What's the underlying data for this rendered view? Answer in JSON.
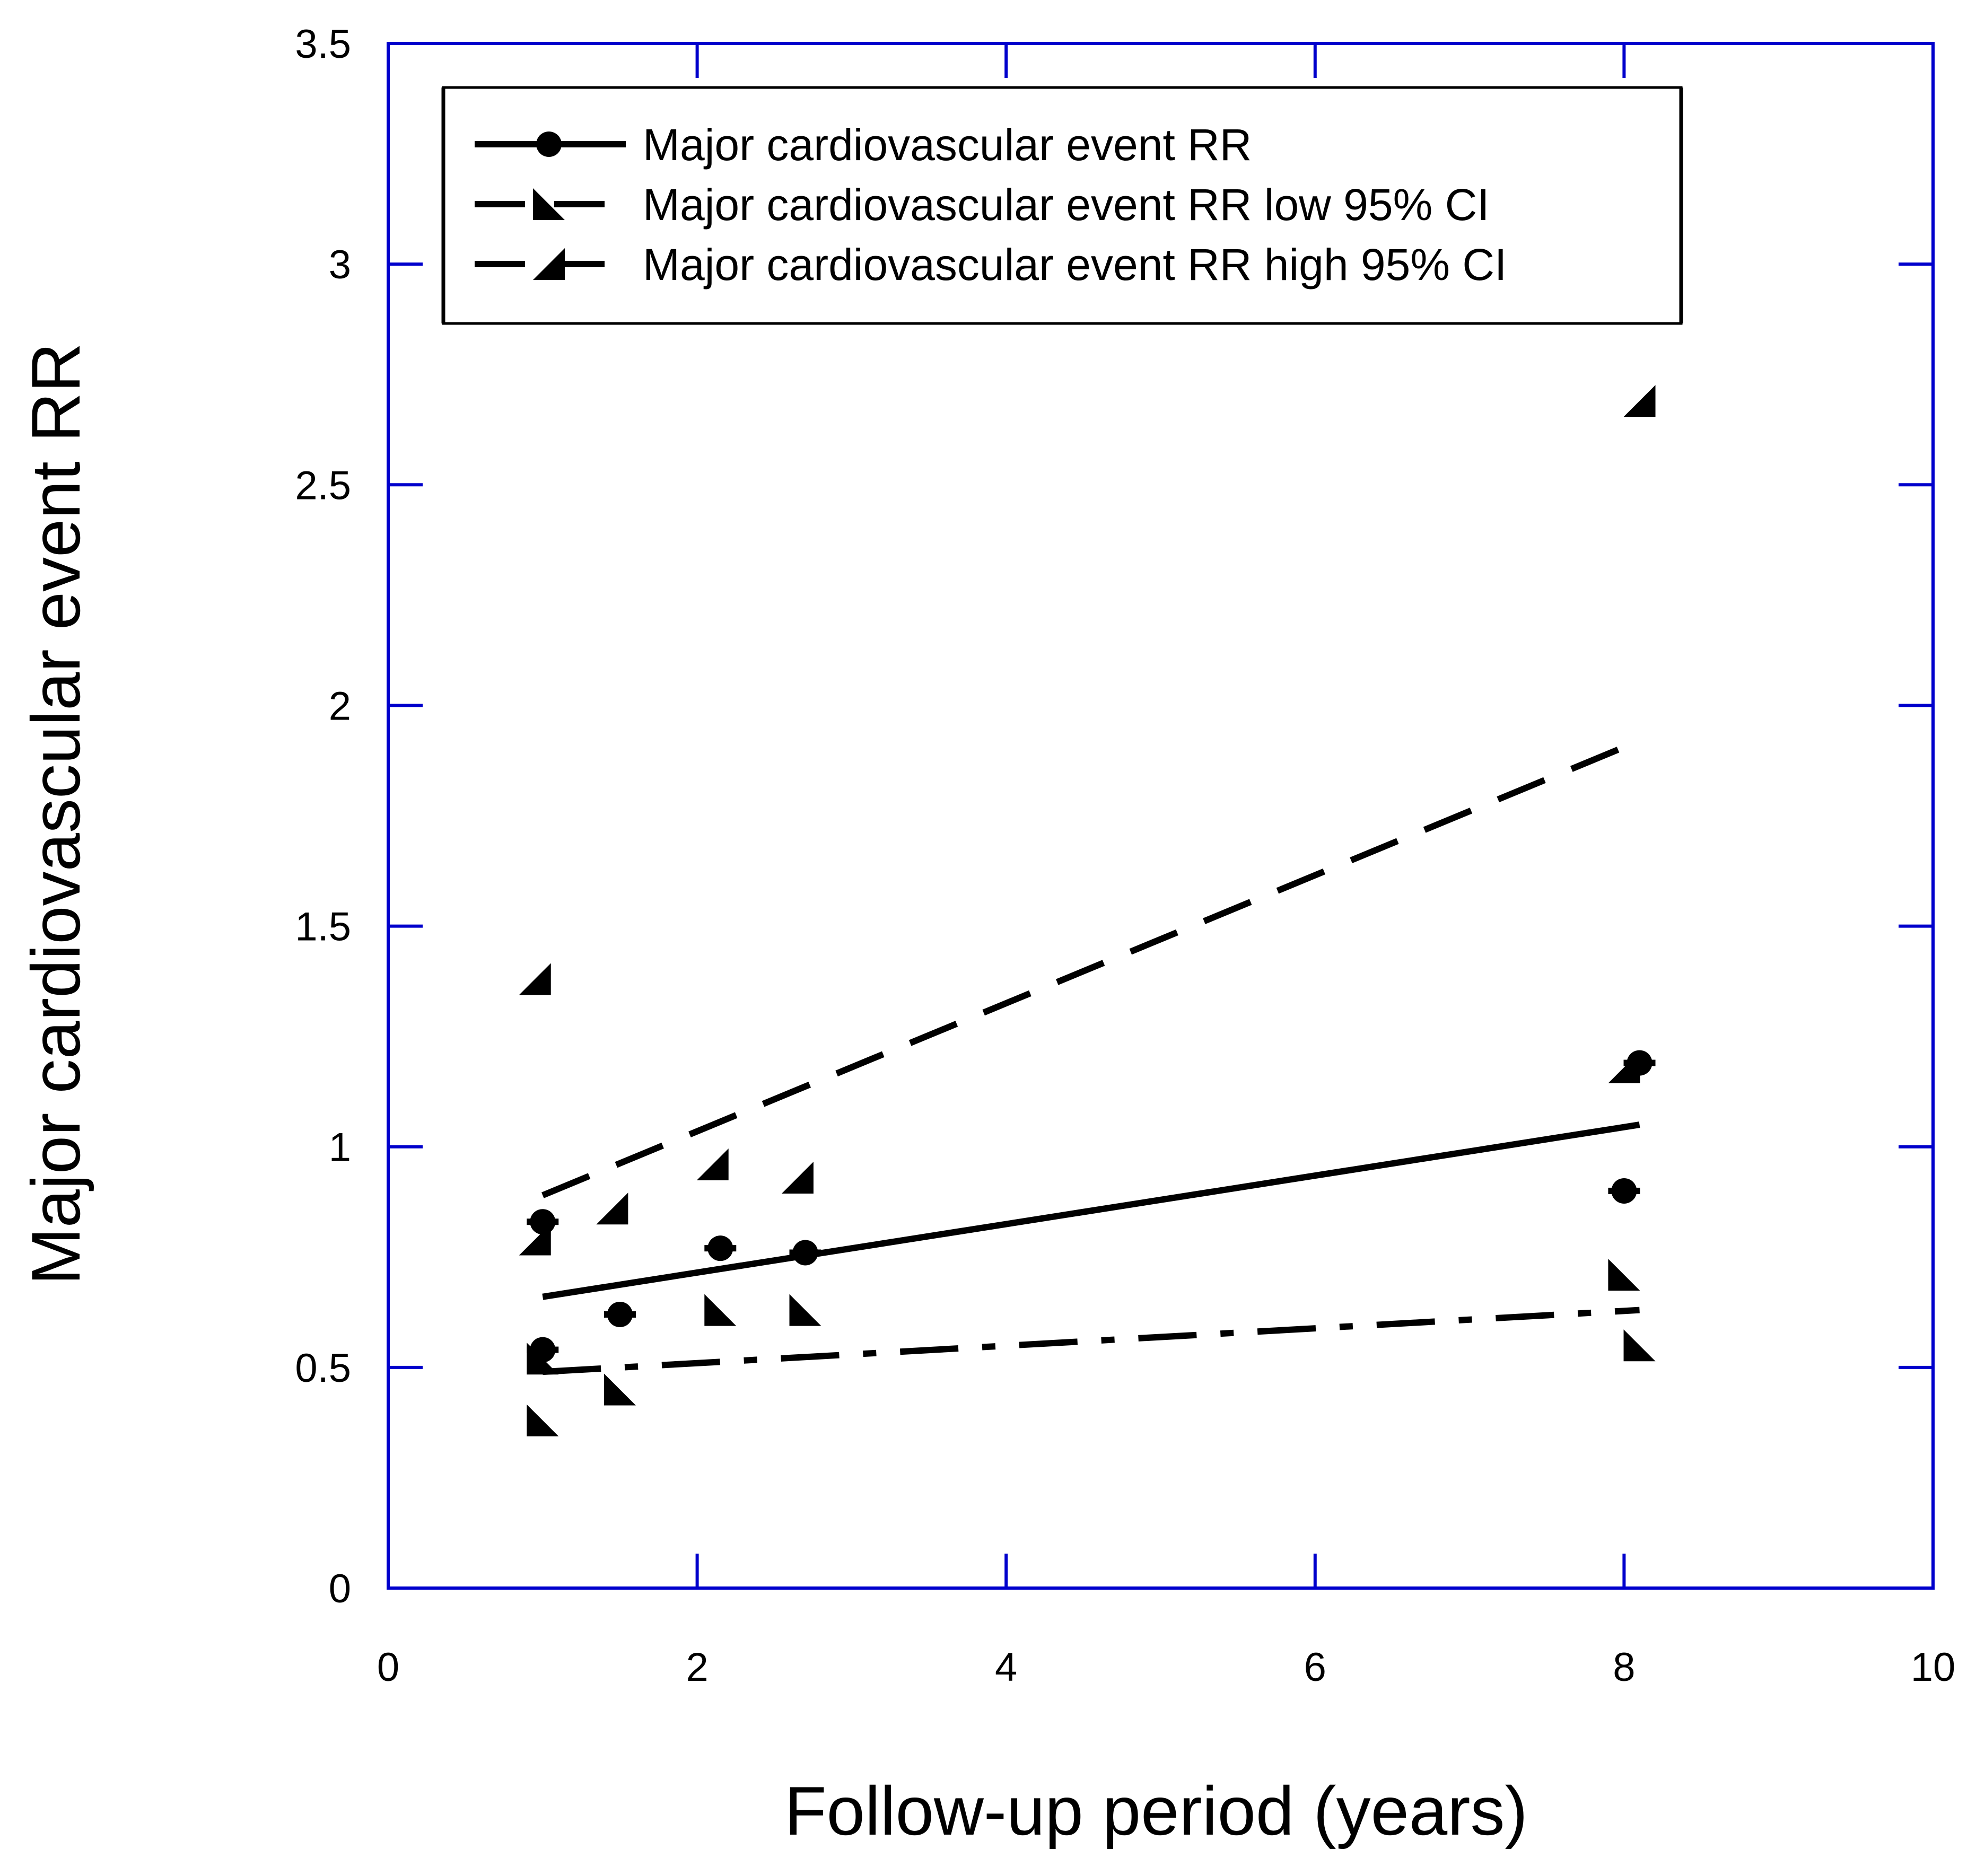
{
  "chart_data": {
    "type": "scatter",
    "xlabel": "Follow-up period (years)",
    "ylabel": "Major cardiovascular event RR",
    "xlim": [
      0,
      10
    ],
    "ylim": [
      0,
      3.5
    ],
    "xticks": [
      "0",
      "2",
      "4",
      "6",
      "8",
      "10"
    ],
    "yticks": [
      "0",
      "0.5",
      "1",
      "1.5",
      "2",
      "2.5",
      "3",
      "3.5"
    ],
    "grid": false,
    "legend_position": "top-left",
    "axis_color": "#0000cc",
    "series": [
      {
        "name": "Major cardiovascular event RR",
        "marker": "circle",
        "line_style": "solid",
        "color": "#000000",
        "x": [
          1.0,
          1.0,
          1.5,
          2.15,
          2.7,
          8.0,
          8.1
        ],
        "y": [
          0.83,
          0.54,
          0.62,
          0.77,
          0.76,
          0.9,
          1.19
        ],
        "trend": {
          "x": [
            1.0,
            8.1
          ],
          "y": [
            0.66,
            1.05
          ]
        }
      },
      {
        "name": "Major cardiovascular event  RR low 95% CI",
        "marker": "triangle-low",
        "line_style": "dash-dot",
        "color": "#000000",
        "x": [
          1.0,
          1.0,
          1.5,
          2.15,
          2.7,
          8.0,
          8.1
        ],
        "y": [
          0.52,
          0.38,
          0.45,
          0.63,
          0.63,
          0.71,
          0.55
        ],
        "trend": {
          "x": [
            1.0,
            8.1
          ],
          "y": [
            0.49,
            0.63
          ]
        }
      },
      {
        "name": "Major cardiovascular event RR high 95% CI",
        "marker": "triangle-high",
        "line_style": "dashed",
        "color": "#000000",
        "x": [
          0.95,
          0.95,
          1.45,
          2.1,
          2.65,
          8.0,
          8.1
        ],
        "y": [
          1.38,
          0.79,
          0.86,
          0.96,
          0.93,
          1.18,
          2.69
        ],
        "trend": {
          "x": [
            1.0,
            8.1
          ],
          "y": [
            0.89,
            1.92
          ]
        }
      }
    ]
  }
}
